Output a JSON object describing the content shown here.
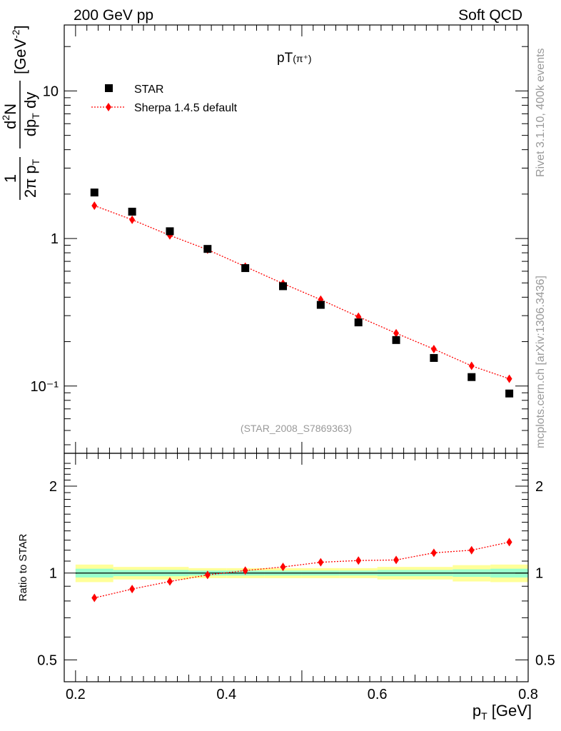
{
  "header": {
    "left": "200 GeV pp",
    "right": "Soft QCD"
  },
  "side_labels": {
    "rivet": "Rivet 3.1.10,  400k events",
    "mcplots": "mcplots.cern.ch [arXiv:1306.3436]"
  },
  "chart_data": [
    {
      "type": "scatter",
      "title": "pT(π⁺)",
      "title_main": "pT",
      "title_paren": "(π⁺)",
      "annotation": "(STAR_2008_S7869363)",
      "ylabel": "1/(2π pT) d²N/(dpT dy) [GeV⁻²]",
      "yscale": "log",
      "ylim": [
        0.035,
        28
      ],
      "xlim": [
        0.185,
        0.8
      ],
      "y_ticks": [
        {
          "value": 10,
          "label": "10"
        },
        {
          "value": 1,
          "label": "1"
        },
        {
          "value": 0.1,
          "label": "10⁻¹"
        }
      ],
      "legend": {
        "placement": "top-left",
        "entries": [
          "STAR",
          "Sherpa 1.4.5 default"
        ]
      },
      "x": [
        0.225,
        0.275,
        0.325,
        0.375,
        0.425,
        0.475,
        0.525,
        0.575,
        0.625,
        0.675,
        0.725,
        0.775
      ],
      "series": [
        {
          "name": "STAR",
          "color": "#000000",
          "marker": "square",
          "values": [
            2.05,
            1.52,
            1.12,
            0.85,
            0.63,
            0.475,
            0.355,
            0.27,
            0.205,
            0.155,
            0.115,
            0.089
          ]
        },
        {
          "name": "Sherpa 1.4.5 default",
          "color": "#ff0000",
          "marker": "diamond",
          "line": "dotted",
          "values": [
            1.67,
            1.34,
            1.05,
            0.84,
            0.645,
            0.495,
            0.385,
            0.295,
            0.228,
            0.178,
            0.137,
            0.112
          ]
        }
      ]
    },
    {
      "type": "line",
      "ylabel": "Ratio to STAR",
      "yscale": "log",
      "ylim": [
        0.42,
        2.6
      ],
      "xlim": [
        0.185,
        0.8
      ],
      "xlabel": "p_T [GeV]",
      "xlabel_main": "p",
      "xlabel_sub": "T",
      "xlabel_unit": " [GeV]",
      "x_ticks": [
        {
          "value": 0.2,
          "label": "0.2"
        },
        {
          "value": 0.4,
          "label": "0.4"
        },
        {
          "value": 0.6,
          "label": "0.6"
        },
        {
          "value": 0.8,
          "label": "0.8"
        }
      ],
      "y_ticks": [
        {
          "value": 2,
          "label": "2"
        },
        {
          "value": 1,
          "label": "1"
        },
        {
          "value": 0.5,
          "label": "0.5"
        }
      ],
      "x": [
        0.225,
        0.275,
        0.325,
        0.375,
        0.425,
        0.475,
        0.525,
        0.575,
        0.625,
        0.675,
        0.725,
        0.775
      ],
      "bins": [
        0.2,
        0.25,
        0.3,
        0.35,
        0.4,
        0.45,
        0.5,
        0.55,
        0.6,
        0.65,
        0.7,
        0.75,
        0.8
      ],
      "reference": 1,
      "band_stat": [
        0.035,
        0.025,
        0.025,
        0.02,
        0.02,
        0.02,
        0.02,
        0.02,
        0.025,
        0.025,
        0.03,
        0.035
      ],
      "band_total": [
        0.07,
        0.05,
        0.05,
        0.04,
        0.04,
        0.04,
        0.04,
        0.04,
        0.05,
        0.05,
        0.065,
        0.07
      ],
      "band_colors": {
        "total": "#ffff99",
        "stat": "#99ffcc"
      },
      "series": [
        {
          "name": "Sherpa 1.4.5 default",
          "color": "#ff0000",
          "marker": "diamond",
          "line": "dotted",
          "values": [
            0.82,
            0.88,
            0.935,
            0.985,
            1.02,
            1.05,
            1.09,
            1.105,
            1.11,
            1.175,
            1.2,
            1.28
          ]
        }
      ]
    }
  ]
}
